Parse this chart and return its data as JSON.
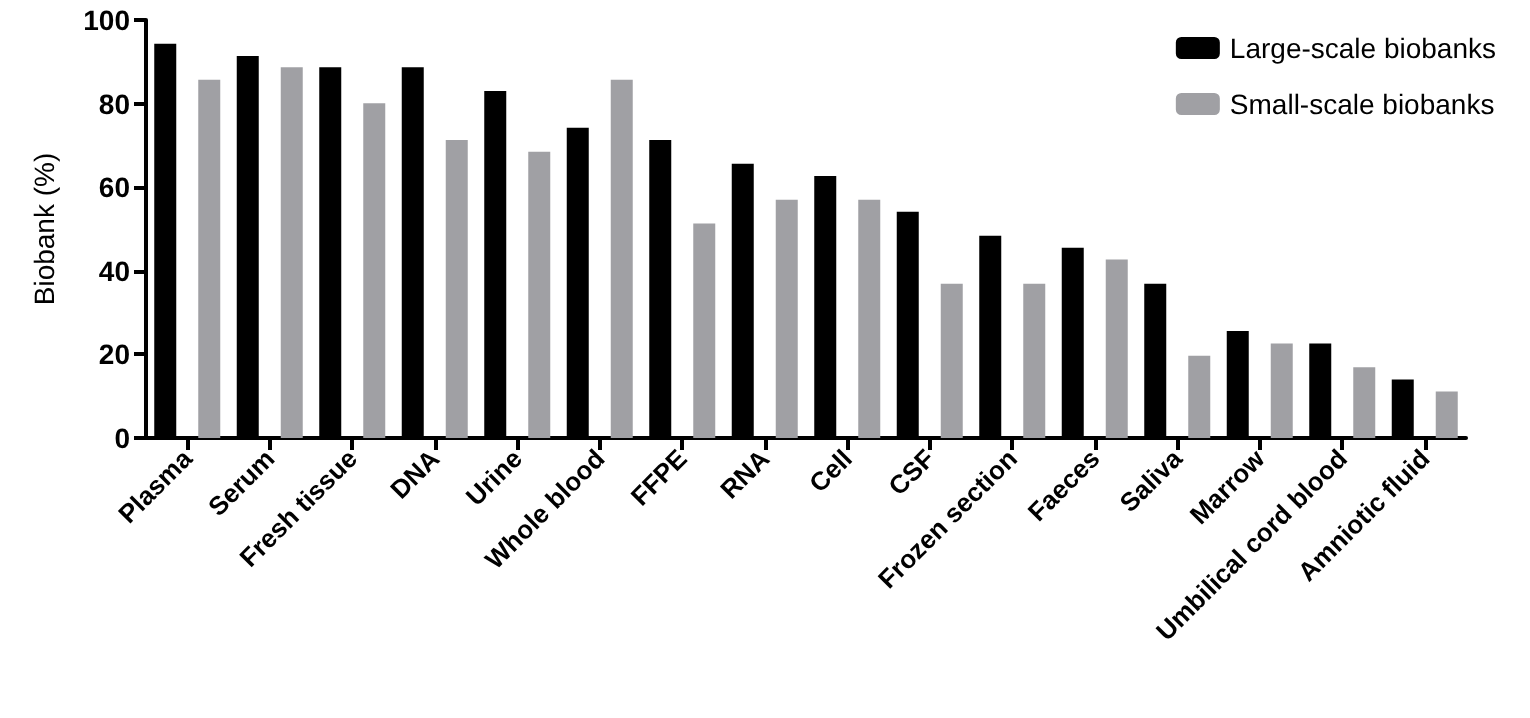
{
  "chart_data": {
    "type": "bar",
    "ylabel": "Biobank (%)",
    "categories": [
      "Plasma",
      "Serum",
      "Fresh tissue",
      "DNA",
      "Urine",
      "Whole blood",
      "FFPE",
      "RNA",
      "Cell",
      "CSF",
      "Frozen section",
      "Faeces",
      "Saliva",
      "Marrow",
      "Umbilical cord blood",
      "Amniotic fluid"
    ],
    "series": [
      {
        "name": "Large-scale biobanks",
        "color": "#000000",
        "values": [
          94.3,
          91.4,
          88.7,
          88.7,
          83.0,
          74.2,
          71.3,
          65.6,
          62.7,
          54.1,
          48.4,
          45.5,
          36.9,
          25.6,
          22.6,
          14.0
        ]
      },
      {
        "name": "Small-scale biobanks",
        "color": "#a0a0a4",
        "values": [
          85.7,
          88.7,
          80.1,
          71.3,
          68.5,
          85.7,
          51.3,
          57.0,
          57.0,
          36.9,
          36.9,
          42.7,
          19.7,
          22.6,
          16.9,
          11.1
        ]
      }
    ],
    "ylim": [
      0,
      100
    ],
    "yticks": [
      0,
      20,
      40,
      60,
      80,
      100
    ],
    "grid": false,
    "legend": "top right"
  }
}
